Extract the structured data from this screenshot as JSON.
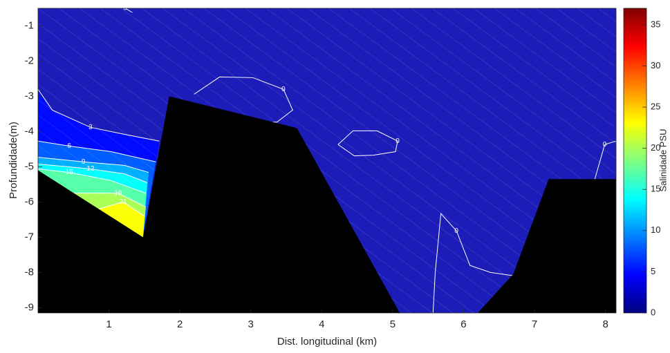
{
  "chart_data": {
    "type": "contour",
    "xlabel": "Dist. longitudinal (km)",
    "ylabel": "Profundidade(m)",
    "colorbar_label": "Salinidade PSU",
    "xlim": [
      0,
      8.15
    ],
    "ylim": [
      -9.15,
      -0.5
    ],
    "xticks": [
      1,
      2,
      3,
      4,
      5,
      6,
      7,
      8
    ],
    "yticks": [
      -1,
      -2,
      -3,
      -4,
      -5,
      -6,
      -7,
      -8,
      -9
    ],
    "clim": [
      0,
      37
    ],
    "cticks": [
      0,
      5,
      10,
      15,
      20,
      25,
      30,
      35
    ],
    "field_color": "#1c1cb8",
    "contours": [
      {
        "level": 0,
        "x": [
          1.23,
          1.33
        ],
        "y": [
          -0.5,
          -0.62
        ]
      },
      {
        "level": 0,
        "x": [
          2.2,
          2.56,
          3.03,
          3.46,
          3.59,
          3.37,
          3.17
        ],
        "y": [
          -2.94,
          -2.45,
          -2.47,
          -2.8,
          -3.39,
          -3.73,
          -3.75
        ]
      },
      {
        "level": 0,
        "x": [
          4.23,
          4.44,
          4.78,
          5.07,
          5.04,
          4.73,
          4.46,
          4.23
        ],
        "y": [
          -4.37,
          -3.98,
          -3.98,
          -4.27,
          -4.57,
          -4.67,
          -4.69,
          -4.37
        ]
      },
      {
        "level": 0,
        "x": [
          5.57,
          5.6,
          5.68,
          5.9,
          6.09,
          6.38,
          6.73
        ],
        "y": [
          -9.14,
          -8.0,
          -6.33,
          -6.82,
          -7.8,
          -8.0,
          -8.1
        ]
      },
      {
        "level": 0,
        "x": [
          7.85,
          7.99,
          8.15
        ],
        "y": [
          -5.35,
          -4.37,
          -4.27
        ]
      },
      {
        "level": 3,
        "x": [
          0,
          0.2,
          0.74,
          1.22,
          1.71
        ],
        "y": [
          -2.8,
          -3.39,
          -3.88,
          -4.08,
          -4.27
        ]
      },
      {
        "level": 6,
        "x": [
          0,
          0.44,
          1.03,
          1.66
        ],
        "y": [
          -4.27,
          -4.41,
          -4.57,
          -4.86
        ]
      },
      {
        "level": 9,
        "x": [
          0,
          0.64,
          1.22,
          1.56
        ],
        "y": [
          -4.73,
          -4.86,
          -4.96,
          -5.16
        ]
      },
      {
        "level": 12,
        "x": [
          0,
          0.74,
          1.22,
          1.54
        ],
        "y": [
          -4.92,
          -5.06,
          -5.2,
          -5.45
        ]
      },
      {
        "level": 15,
        "x": [
          0,
          0.44,
          1.03,
          1.52
        ],
        "y": [
          -5.06,
          -5.16,
          -5.39,
          -5.75
        ]
      },
      {
        "level": 18,
        "x": [
          0.5,
          1.13,
          1.52
        ],
        "y": [
          -5.75,
          -5.75,
          -6.14
        ]
      },
      {
        "level": 21,
        "x": [
          0.85,
          1.2,
          1.5
        ],
        "y": [
          -6.2,
          -6.0,
          -6.4
        ]
      }
    ],
    "terrain": {
      "color": "#000000",
      "x": [
        0,
        1.48,
        1.85,
        3.65,
        5.1,
        6.2,
        6.7,
        7.2,
        8.15,
        8.15,
        0
      ],
      "y": [
        -5.1,
        -7.0,
        -3.0,
        -3.9,
        -9.15,
        -9.15,
        -8.05,
        -5.35,
        -5.35,
        -9.15,
        -9.15
      ]
    }
  }
}
